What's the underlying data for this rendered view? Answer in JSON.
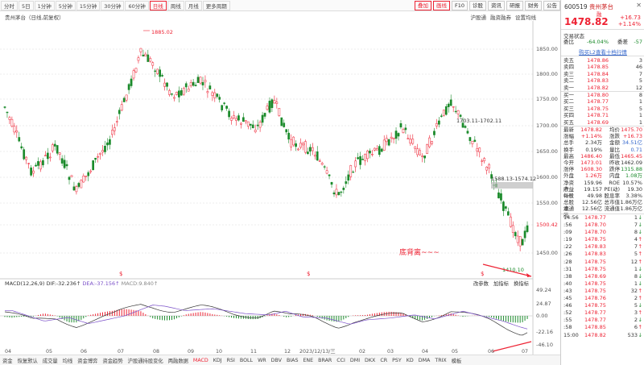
{
  "toolbar": {
    "tabs": [
      "分时",
      "5日",
      "1分钟",
      "5分钟",
      "15分钟",
      "30分钟",
      "60分钟",
      "日线",
      "周线",
      "月线",
      "更多周期"
    ],
    "active_index": 7,
    "right_buttons": [
      "叠加",
      "画线",
      "F10",
      "诊股",
      "资讯",
      "研报",
      "财务",
      "公告"
    ]
  },
  "sub_toolbar": {
    "name": "贵州茅台（日线,前复权）",
    "items": [
      "沪股通",
      "融资融券",
      "设置均线"
    ]
  },
  "chart": {
    "y_labels": [
      "1850.00",
      "1800.00",
      "1750.00",
      "1700.00",
      "1650.00",
      "1600.00",
      "1550.00",
      "1500.42",
      "1450.00"
    ],
    "high_label": "1885.02",
    "low_label": "1410.10",
    "range_label_1": "1703.11-1702.11",
    "range_label_2": "1588.13-1574.12",
    "annotation": "底背离~~~",
    "macd_legend": {
      "name": "MACD(12,26,9)",
      "dif": "DIF:-32.236",
      "dea": "DEA:-37.156",
      "macd": "MACD:9.840"
    },
    "macd_right_buttons": [
      "改参数",
      "加指标",
      "换指标"
    ],
    "macd_y_labels": [
      "49.24",
      "24.87",
      "0.00",
      "-22.16",
      "-46.10"
    ],
    "x_labels": [
      "04",
      "05",
      "06",
      "07",
      "08",
      "09",
      "10",
      "11",
      "12",
      "2023/12/13/三",
      "02",
      "03",
      "04",
      "05",
      "06",
      "07"
    ]
  },
  "bottom_tabs": [
    "资金",
    "恢复默认",
    "成交量",
    "均线",
    "资金博弈",
    "资金趋势",
    "沪股通持股变化",
    "两融数据",
    "MACD",
    "KDJ",
    "RSI",
    "BOLL",
    "WR",
    "DBV",
    "BIAS",
    "ENE",
    "BRAR",
    "CCI",
    "DMI",
    "DKX",
    "CR",
    "PSY",
    "KD",
    "DMA",
    "TRIX",
    "模板"
  ],
  "bottom_active": "MACD",
  "quote": {
    "code": "600519",
    "name": "贵州茅台",
    "tag": "融",
    "price": "1478.82",
    "change": "+16.73",
    "change_pct": "+1.14%",
    "order_label": "交易状态",
    "wei_bi_label": "委比",
    "wei_bi": "-64.04%",
    "wei_cha_label": "委差",
    "wei_cha": "-57",
    "link": "购买L2查看十档行情",
    "asks": [
      {
        "label": "卖五",
        "price": "1478.86",
        "vol": "3"
      },
      {
        "label": "卖四",
        "price": "1478.85",
        "vol": "46"
      },
      {
        "label": "卖三",
        "price": "1478.84",
        "vol": "7"
      },
      {
        "label": "卖二",
        "price": "1478.83",
        "vol": "5"
      },
      {
        "label": "卖一",
        "price": "1478.82",
        "vol": "12"
      }
    ],
    "bids": [
      {
        "label": "买一",
        "price": "1478.80",
        "vol": "8"
      },
      {
        "label": "买二",
        "price": "1478.77",
        "vol": "1"
      },
      {
        "label": "买三",
        "price": "1478.75",
        "vol": "5"
      },
      {
        "label": "买四",
        "price": "1478.71",
        "vol": "1"
      },
      {
        "label": "买五",
        "price": "1478.69",
        "vol": "1"
      }
    ],
    "stats": [
      {
        "k1": "最新",
        "v1": "1478.82",
        "c1": "red",
        "k2": "均价",
        "v2": "1475.70",
        "c2": "red"
      },
      {
        "k1": "涨幅",
        "v1": "+1.14%",
        "c1": "red",
        "k2": "涨跌",
        "v2": "+16.73",
        "c2": "red"
      },
      {
        "k1": "总手",
        "v1": "2.34万",
        "c1": "",
        "k2": "金额",
        "v2": "34.51亿",
        "c2": "blue"
      },
      {
        "k1": "换手",
        "v1": "0.19%",
        "c1": "",
        "k2": "量比",
        "v2": "0.71",
        "c2": "blue"
      },
      {
        "k1": "最高",
        "v1": "1486.40",
        "c1": "red",
        "k2": "最低",
        "v2": "1465.45",
        "c2": "red"
      },
      {
        "k1": "今开",
        "v1": "1473.01",
        "c1": "red",
        "k2": "昨收",
        "v2": "1462.09",
        "c2": ""
      },
      {
        "k1": "涨停",
        "v1": "1608.30",
        "c1": "red",
        "k2": "跌停",
        "v2": "1315.88",
        "c2": "green"
      },
      {
        "k1": "外盘",
        "v1": "1.26万",
        "c1": "red",
        "k2": "内盘",
        "v2": "1.08万",
        "c2": "green"
      },
      {
        "k1": "净资产",
        "v1": "159.96",
        "c1": "",
        "k2": "ROE",
        "v2": "10.57%",
        "c2": ""
      },
      {
        "k1": "收益(一)",
        "v1": "19.157",
        "c1": "",
        "k2": "PE(动)",
        "v2": "19.30",
        "c2": ""
      },
      {
        "k1": "每股",
        "v1": "49.98",
        "c1": "",
        "k2": "股息率",
        "v2": "3.38%",
        "c2": ""
      },
      {
        "k1": "总股本",
        "v1": "12.56亿",
        "c1": "",
        "k2": "总市值",
        "v2": "1.86万亿",
        "c2": ""
      },
      {
        "k1": "流通股",
        "v1": "12.56亿",
        "c1": "",
        "k2": "流通值",
        "v2": "1.86万亿",
        "c2": ""
      }
    ],
    "ticks": [
      {
        "t": "14:56",
        "p": "1478.77",
        "v": "1",
        "d": "↓",
        "dc": "green"
      },
      {
        "t": ":56",
        "p": "1478.70",
        "v": "7",
        "d": "↓",
        "dc": "green"
      },
      {
        "t": ":09",
        "p": "1478.70",
        "v": "8",
        "d": "↓",
        "dc": "green"
      },
      {
        "t": ":19",
        "p": "1478.75",
        "v": "4",
        "d": "↑",
        "dc": "red"
      },
      {
        "t": ":22",
        "p": "1478.83",
        "v": "7",
        "d": "↑",
        "dc": "red"
      },
      {
        "t": ":26",
        "p": "1478.83",
        "v": "5",
        "d": "↑",
        "dc": "red"
      },
      {
        "t": ":28",
        "p": "1478.75",
        "v": "12",
        "d": "↑",
        "dc": "red"
      },
      {
        "t": ":31",
        "p": "1478.75",
        "v": "1",
        "d": "↓",
        "dc": "green"
      },
      {
        "t": ":38",
        "p": "1478.69",
        "v": "8",
        "d": "↓",
        "dc": "green"
      },
      {
        "t": ":40",
        "p": "1478.75",
        "v": "1",
        "d": "↓",
        "dc": "green"
      },
      {
        "t": ":43",
        "p": "1478.75",
        "v": "32",
        "d": "↑",
        "dc": "red"
      },
      {
        "t": ":45",
        "p": "1478.76",
        "v": "2",
        "d": "↑",
        "dc": "red"
      },
      {
        "t": ":46",
        "p": "1478.75",
        "v": "5",
        "d": "↓",
        "dc": "green"
      },
      {
        "t": ":52",
        "p": "1478.77",
        "v": "3",
        "d": "↑",
        "dc": "red"
      },
      {
        "t": ":55",
        "p": "1478.77",
        "v": "2",
        "d": "↓",
        "dc": "green"
      },
      {
        "t": ":58",
        "p": "1478.85",
        "v": "6",
        "d": "↑",
        "dc": "red"
      },
      {
        "t": "15:00",
        "p": "1478.82",
        "v": "533",
        "d": "↓",
        "dc": "green"
      }
    ]
  }
}
